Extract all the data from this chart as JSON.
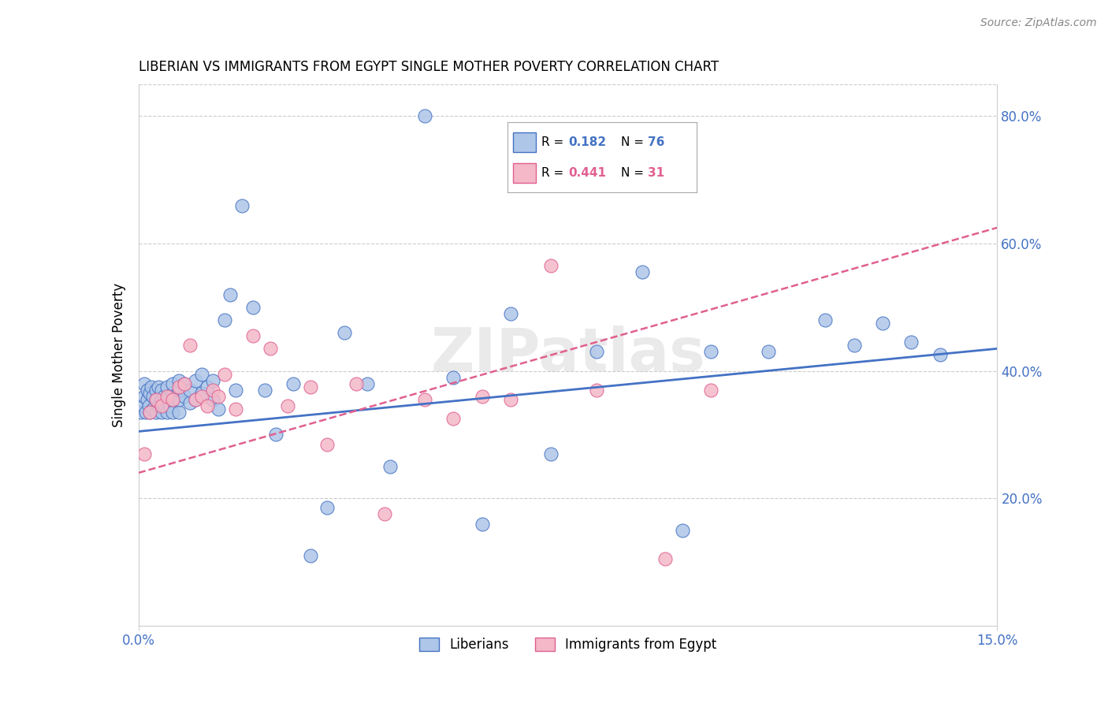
{
  "title": "LIBERIAN VS IMMIGRANTS FROM EGYPT SINGLE MOTHER POVERTY CORRELATION CHART",
  "source": "Source: ZipAtlas.com",
  "ylabel_label": "Single Mother Poverty",
  "xlim": [
    0.0,
    0.15
  ],
  "ylim": [
    0.0,
    0.85
  ],
  "xticks": [
    0.0,
    0.15
  ],
  "xticklabels": [
    "0.0%",
    "15.0%"
  ],
  "yticks": [
    0.2,
    0.4,
    0.6,
    0.8
  ],
  "yticklabels": [
    "20.0%",
    "40.0%",
    "60.0%",
    "80.0%"
  ],
  "legend_r1": "0.182",
  "legend_n1": "76",
  "legend_r2": "0.441",
  "legend_n2": "31",
  "blue_color": "#aec6e8",
  "pink_color": "#f4b8c8",
  "line_blue": "#4472c4",
  "line_pink": "#e06090",
  "watermark": "ZIPatlas",
  "blue_points_x": [
    0.0005,
    0.0008,
    0.001,
    0.001,
    0.0013,
    0.0015,
    0.0015,
    0.0018,
    0.002,
    0.002,
    0.0022,
    0.0025,
    0.0025,
    0.003,
    0.003,
    0.003,
    0.0032,
    0.0035,
    0.0035,
    0.004,
    0.004,
    0.004,
    0.0045,
    0.0045,
    0.005,
    0.005,
    0.005,
    0.0055,
    0.006,
    0.006,
    0.006,
    0.006,
    0.007,
    0.007,
    0.007,
    0.007,
    0.008,
    0.008,
    0.009,
    0.009,
    0.01,
    0.01,
    0.011,
    0.011,
    0.012,
    0.013,
    0.013,
    0.014,
    0.015,
    0.016,
    0.017,
    0.018,
    0.02,
    0.022,
    0.024,
    0.027,
    0.03,
    0.033,
    0.036,
    0.04,
    0.044,
    0.05,
    0.055,
    0.06,
    0.065,
    0.072,
    0.08,
    0.088,
    0.095,
    0.1,
    0.11,
    0.12,
    0.125,
    0.13,
    0.135,
    0.14
  ],
  "blue_points_y": [
    0.335,
    0.345,
    0.36,
    0.38,
    0.335,
    0.355,
    0.37,
    0.345,
    0.335,
    0.365,
    0.375,
    0.34,
    0.36,
    0.335,
    0.355,
    0.37,
    0.355,
    0.345,
    0.375,
    0.335,
    0.355,
    0.37,
    0.345,
    0.36,
    0.335,
    0.355,
    0.375,
    0.345,
    0.335,
    0.355,
    0.365,
    0.38,
    0.335,
    0.355,
    0.37,
    0.385,
    0.36,
    0.38,
    0.35,
    0.37,
    0.355,
    0.385,
    0.365,
    0.395,
    0.375,
    0.355,
    0.385,
    0.34,
    0.48,
    0.52,
    0.37,
    0.66,
    0.5,
    0.37,
    0.3,
    0.38,
    0.11,
    0.185,
    0.46,
    0.38,
    0.25,
    0.8,
    0.39,
    0.16,
    0.49,
    0.27,
    0.43,
    0.555,
    0.15,
    0.43,
    0.43,
    0.48,
    0.44,
    0.475,
    0.445,
    0.425
  ],
  "pink_points_x": [
    0.001,
    0.002,
    0.003,
    0.004,
    0.005,
    0.006,
    0.007,
    0.008,
    0.009,
    0.01,
    0.011,
    0.012,
    0.013,
    0.014,
    0.015,
    0.017,
    0.02,
    0.023,
    0.026,
    0.03,
    0.033,
    0.038,
    0.043,
    0.05,
    0.055,
    0.06,
    0.065,
    0.072,
    0.08,
    0.092,
    0.1
  ],
  "pink_points_y": [
    0.27,
    0.335,
    0.355,
    0.345,
    0.36,
    0.355,
    0.375,
    0.38,
    0.44,
    0.355,
    0.36,
    0.345,
    0.37,
    0.36,
    0.395,
    0.34,
    0.455,
    0.435,
    0.345,
    0.375,
    0.285,
    0.38,
    0.175,
    0.355,
    0.325,
    0.36,
    0.355,
    0.565,
    0.37,
    0.105,
    0.37
  ],
  "blue_trendline_x": [
    0.0,
    0.15
  ],
  "blue_trendline_y": [
    0.305,
    0.435
  ],
  "pink_trendline_x": [
    0.0,
    0.15
  ],
  "pink_trendline_y": [
    0.24,
    0.625
  ]
}
